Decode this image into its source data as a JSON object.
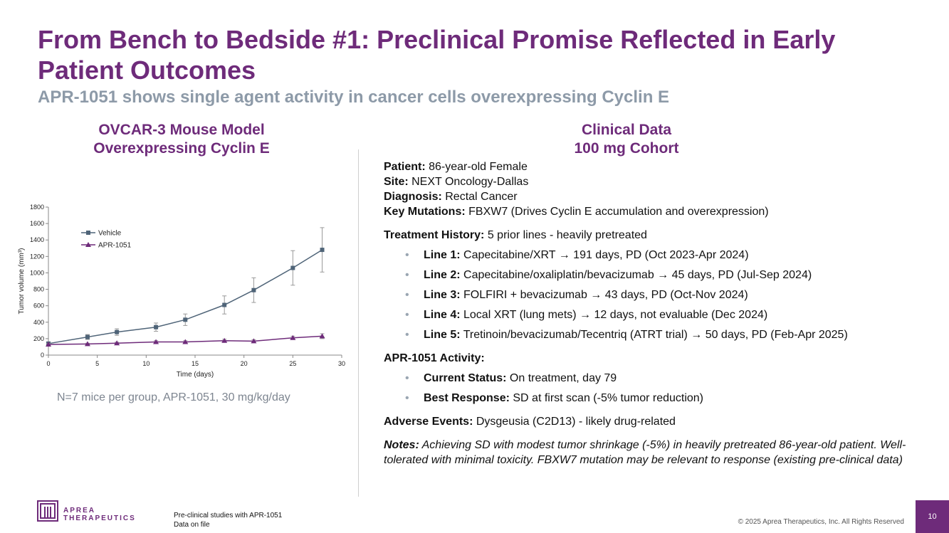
{
  "slide": {
    "title": "From Bench to Bedside #1: Preclinical Promise Reflected in Early Patient Outcomes",
    "subtitle": "APR-1051 shows single agent activity in cancer cells overexpressing Cyclin E",
    "page_number": "10",
    "copyright": "© 2025 Aprea Therapeutics, Inc. All Rights Reserved",
    "footnote_line1": "Pre-clinical studies with APR-1051",
    "footnote_line2": "Data on file",
    "logo_line1": "APREA",
    "logo_line2": "THERAPEUTICS",
    "brand_color": "#6e2b7a"
  },
  "left": {
    "heading_line1": "OVCAR-3 Mouse Model",
    "heading_line2": "Overexpressing Cyclin E",
    "note": "N=7 mice per group, APR-1051, 30 mg/kg/day"
  },
  "right": {
    "heading_line1": "Clinical Data",
    "heading_line2": "100 mg Cohort",
    "patient_label": "Patient:",
    "patient_value": " 86-year-old Female",
    "site_label": "Site:",
    "site_value": " NEXT Oncology-Dallas",
    "diagnosis_label": "Diagnosis:",
    "diagnosis_value": " Rectal Cancer",
    "mutations_label": "Key Mutations:",
    "mutations_value": " FBXW7 (Drives Cyclin E accumulation and overexpression)",
    "history_label": "Treatment History:",
    "history_value": " 5 prior lines - heavily pretreated",
    "lines": [
      {
        "label": "Line 1:",
        "text": " Capecitabine/XRT → 191 days, PD (Oct 2023-Apr 2024)"
      },
      {
        "label": "Line 2:",
        "text": " Capecitabine/oxaliplatin/bevacizumab → 45 days, PD (Jul-Sep 2024)"
      },
      {
        "label": "Line 3:",
        "text": " FOLFIRI + bevacizumab → 43 days, PD (Oct-Nov 2024)"
      },
      {
        "label": "Line 4:",
        "text": " Local XRT (lung mets) → 12 days, not evaluable (Dec 2024)"
      },
      {
        "label": "Line 5:",
        "text": " Tretinoin/bevacizumab/Tecentriq (ATRT trial) → 50 days, PD (Feb-Apr 2025)"
      }
    ],
    "activity_label": "APR-1051 Activity:",
    "activity": [
      {
        "label": "Current Status:",
        "text": " On treatment, day 79"
      },
      {
        "label": "Best Response:",
        "text": " SD at first scan (-5% tumor reduction)"
      }
    ],
    "adverse_label": "Adverse Events:",
    "adverse_value": " Dysgeusia (C2D13) - likely drug-related",
    "notes_label": "Notes:",
    "notes_value": " Achieving SD with modest tumor shrinkage (-5%) in heavily pretreated 86-year-old patient. Well-tolerated with minimal toxicity. FBXW7 mutation may be relevant to response (existing pre-clinical data)"
  },
  "chart_data": {
    "type": "line",
    "xlabel": "Time (days)",
    "ylabel": "Tumor volume (mm³)",
    "xlim": [
      0,
      30
    ],
    "ylim": [
      0,
      1800
    ],
    "xticks": [
      0,
      5,
      10,
      15,
      20,
      25,
      30
    ],
    "yticks": [
      0,
      200,
      400,
      600,
      800,
      1000,
      1200,
      1400,
      1600,
      1800
    ],
    "grid": false,
    "legend_position": "top-left",
    "series": [
      {
        "name": "Vehicle",
        "color": "#4f6478",
        "marker": "square",
        "x": [
          0,
          4,
          7,
          11,
          14,
          18,
          21,
          25,
          28
        ],
        "y": [
          140,
          220,
          280,
          340,
          430,
          610,
          790,
          1060,
          1280
        ],
        "err": [
          15,
          30,
          40,
          50,
          70,
          110,
          150,
          210,
          270
        ]
      },
      {
        "name": "APR-1051",
        "color": "#6e2b7a",
        "marker": "triangle",
        "x": [
          0,
          4,
          7,
          11,
          14,
          18,
          21,
          25,
          28
        ],
        "y": [
          130,
          135,
          145,
          160,
          160,
          175,
          170,
          210,
          230
        ],
        "err": [
          10,
          10,
          12,
          15,
          15,
          18,
          18,
          20,
          30
        ]
      }
    ]
  }
}
